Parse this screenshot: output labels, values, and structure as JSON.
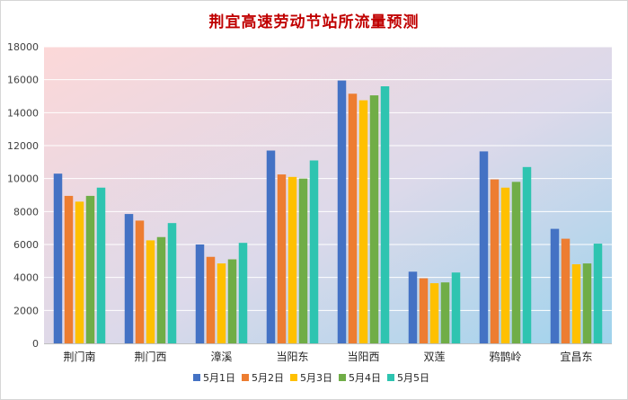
{
  "chart_data": {
    "type": "bar",
    "title": "荆宜高速劳动节站所流量预测",
    "xlabel": "",
    "ylabel": "",
    "ylim": [
      0,
      18000
    ],
    "yticks": [
      "0",
      "2000",
      "4000",
      "6000",
      "8000",
      "10000",
      "12000",
      "14000",
      "16000",
      "18000"
    ],
    "grid": true,
    "legend_position": "bottom",
    "categories": [
      "荆门南",
      "荆门西",
      "漳溪",
      "当阳东",
      "当阳西",
      "双莲",
      "鸦鹊岭",
      "宜昌东"
    ],
    "series": [
      {
        "name": "5月1日",
        "color": "#4472c4",
        "values": [
          10300,
          7850,
          6000,
          11700,
          15950,
          4350,
          11650,
          6950
        ]
      },
      {
        "name": "5月2日",
        "color": "#ed7d31",
        "values": [
          8950,
          7450,
          5250,
          10250,
          15150,
          3950,
          9950,
          6350
        ]
      },
      {
        "name": "5月3日",
        "color": "#ffc000",
        "values": [
          8600,
          6250,
          4850,
          10100,
          14750,
          3650,
          9450,
          4800
        ]
      },
      {
        "name": "5月4日",
        "color": "#70ad47",
        "values": [
          8950,
          6450,
          5100,
          10000,
          15050,
          3700,
          9800,
          4850
        ]
      },
      {
        "name": "5月5日",
        "color": "#2ec4b0",
        "values": [
          9450,
          7300,
          6100,
          11100,
          15600,
          4300,
          10700,
          6050
        ]
      }
    ]
  }
}
